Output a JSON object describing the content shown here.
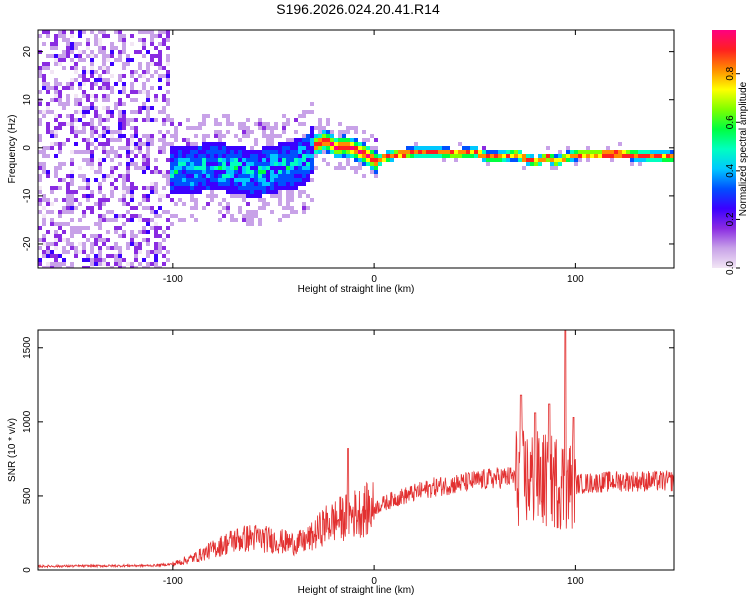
{
  "title": "S196.2026.024.20.41.R14",
  "chart_data": [
    {
      "type": "heatmap",
      "name": "spectrogram",
      "xlabel": "Height of straight line (km)",
      "ylabel": "Frequency (Hz)",
      "xlim": [
        -167,
        149
      ],
      "ylim": [
        -25,
        24.5
      ],
      "xticks": [
        -100,
        0,
        100
      ],
      "xtick_labels": [
        "-100",
        "0",
        "100"
      ],
      "yticks": [
        20,
        10,
        0,
        -10,
        -20
      ],
      "ytick_labels": [
        "20",
        "10",
        "0",
        "-10",
        "-20"
      ],
      "colorbar": {
        "label": "Normalized spectral amplitude",
        "range": [
          0,
          0.98
        ],
        "ticks": [
          0.0,
          0.2,
          0.4,
          0.6,
          0.8
        ],
        "tick_labels": [
          "0.0",
          "0.2",
          "0.4",
          "0.6",
          "0.8"
        ],
        "colors": [
          "#f2e6f5",
          "#c8a2e8",
          "#8a2be2",
          "#3b00ff",
          "#0050ff",
          "#00c8ff",
          "#00ffc0",
          "#00ff40",
          "#7fff00",
          "#ffff00",
          "#ff8c00",
          "#ff2020",
          "#ff0080"
        ]
      },
      "ridge": {
        "x": [
          -100,
          -90,
          -80,
          -70,
          -60,
          -50,
          -40,
          -35,
          -30,
          -25,
          -20,
          -15,
          -10,
          -5,
          0,
          5,
          10,
          20,
          30,
          40,
          50,
          55,
          60,
          70,
          75,
          80,
          85,
          90,
          95,
          100,
          110,
          120,
          130,
          149
        ],
        "freq": [
          -4.5,
          -4,
          -3.5,
          -4,
          -5,
          -4,
          -3,
          -2,
          1,
          2,
          0.5,
          0.8,
          0,
          -1,
          -2.5,
          -1.5,
          -1,
          -0.5,
          -0.5,
          -0.8,
          -0.5,
          -1.5,
          -1.5,
          -1,
          -2,
          -2.5,
          -1.5,
          -2.5,
          -1.5,
          -1,
          -1,
          -0.8,
          -1.2,
          -1.5
        ]
      }
    },
    {
      "type": "line",
      "name": "snr",
      "xlabel": "Height of straight line (km)",
      "ylabel": "SNR (10 * v/v)",
      "xlim": [
        -167,
        149
      ],
      "ylim": [
        0,
        1620
      ],
      "xticks": [
        -100,
        0,
        100
      ],
      "xtick_labels": [
        "-100",
        "0",
        "100"
      ],
      "yticks": [
        0,
        500,
        1000,
        1500
      ],
      "ytick_labels": [
        "0",
        "500",
        "1000",
        "1500"
      ],
      "color": "#e23030",
      "baseline": {
        "x": [
          -167,
          -110,
          -100,
          -90,
          -80,
          -70,
          -60,
          -50,
          -40,
          -35,
          -30,
          -25,
          -20,
          -10,
          0,
          10,
          20,
          30,
          40,
          50,
          60,
          70,
          80,
          90,
          95,
          100,
          110,
          120,
          130,
          149
        ],
        "y": [
          25,
          30,
          40,
          80,
          140,
          200,
          220,
          200,
          180,
          190,
          230,
          300,
          330,
          380,
          420,
          480,
          520,
          560,
          580,
          600,
          620,
          630,
          610,
          600,
          580,
          580,
          590,
          600,
          600,
          600
        ]
      },
      "spikes": [
        {
          "x": -13,
          "y": 820
        },
        {
          "x": 73,
          "y": 1180
        },
        {
          "x": 80,
          "y": 1060
        },
        {
          "x": 87,
          "y": 1120
        },
        {
          "x": 95,
          "y": 1620
        },
        {
          "x": 99,
          "y": 1030
        }
      ]
    }
  ]
}
